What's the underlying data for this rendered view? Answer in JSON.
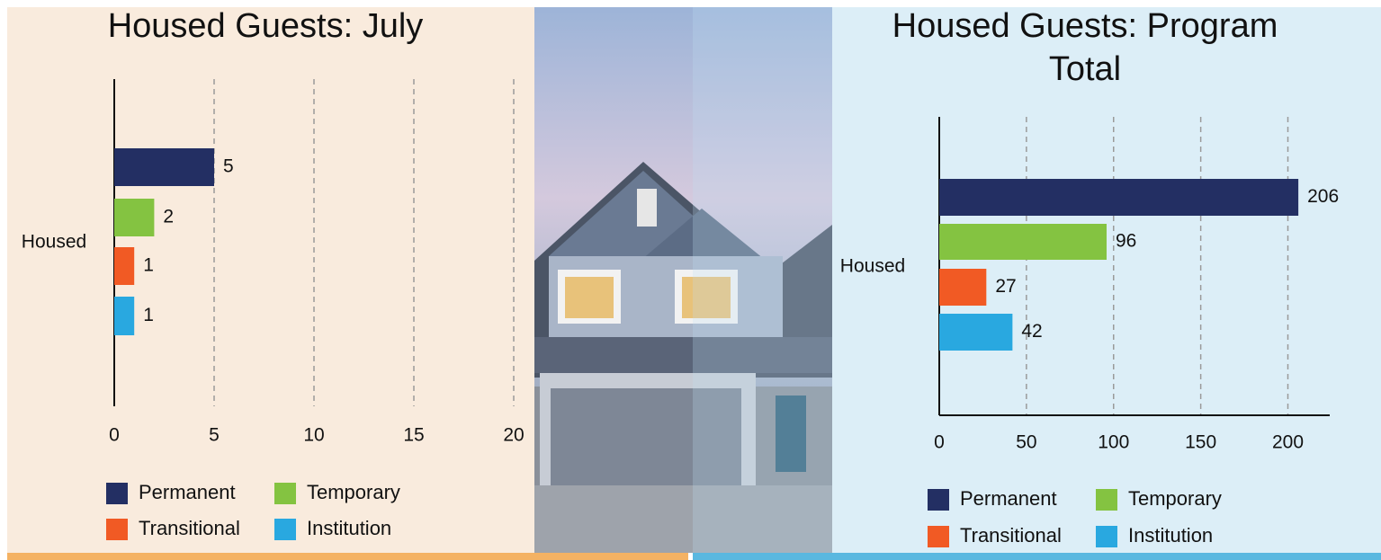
{
  "chart_data": [
    {
      "type": "bar",
      "orientation": "horizontal",
      "title": "Housed Guests: July",
      "categories": [
        "Housed"
      ],
      "series": [
        {
          "name": "Permanent",
          "color": "#232f63",
          "values": [
            5
          ]
        },
        {
          "name": "Temporary",
          "color": "#84c341",
          "values": [
            2
          ]
        },
        {
          "name": "Transitional",
          "color": "#f15a24",
          "values": [
            1
          ]
        },
        {
          "name": "Institution",
          "color": "#29a8e0",
          "values": [
            1
          ]
        }
      ],
      "xlim": [
        0,
        20
      ],
      "xticks": [
        0,
        5,
        10,
        15,
        20
      ],
      "grid": true
    },
    {
      "type": "bar",
      "orientation": "horizontal",
      "title": "Housed Guests: Program Total",
      "categories": [
        "Housed"
      ],
      "series": [
        {
          "name": "Permanent",
          "color": "#232f63",
          "values": [
            206
          ]
        },
        {
          "name": "Temporary",
          "color": "#84c341",
          "values": [
            96
          ]
        },
        {
          "name": "Transitional",
          "color": "#f15a24",
          "values": [
            27
          ]
        },
        {
          "name": "Institution",
          "color": "#29a8e0",
          "values": [
            42
          ]
        }
      ],
      "xlim": [
        0,
        224
      ],
      "xticks": [
        0,
        50,
        100,
        150,
        200
      ],
      "grid": true
    }
  ]
}
